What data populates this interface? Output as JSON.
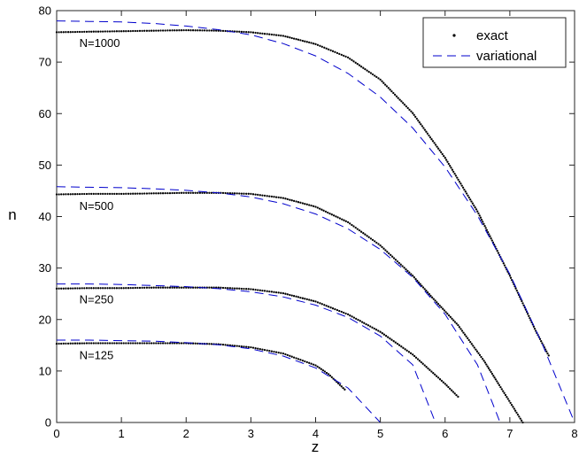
{
  "chart_data": {
    "type": "line",
    "title": "",
    "xlabel": "z",
    "ylabel": "n",
    "xlim": [
      0,
      8
    ],
    "ylim": [
      0,
      80
    ],
    "xticks": [
      0,
      1,
      2,
      3,
      4,
      5,
      6,
      7,
      8
    ],
    "yticks": [
      0,
      10,
      20,
      30,
      40,
      50,
      60,
      70,
      80
    ],
    "xtick_labels": [
      "0",
      "1",
      "2",
      "3",
      "4",
      "5",
      "6",
      "7",
      "8"
    ],
    "ytick_labels": [
      "0",
      "10",
      "20",
      "30",
      "40",
      "50",
      "60",
      "70",
      "80"
    ],
    "grid": false,
    "legend": {
      "position": "top-right",
      "entries": [
        {
          "name": "exact",
          "style": "dotted",
          "color": "#000000"
        },
        {
          "name": "variational",
          "style": "dashed",
          "color": "#0000cc"
        }
      ]
    },
    "curve_labels": [
      {
        "text": "N=1000",
        "x": 0.35,
        "y": 73.6
      },
      {
        "text": "N=500",
        "x": 0.35,
        "y": 42.0
      },
      {
        "text": "N=250",
        "x": 0.35,
        "y": 23.8
      },
      {
        "text": "N=125",
        "x": 0.35,
        "y": 13.0
      }
    ],
    "series": [
      {
        "group": "N=1000",
        "kind": "exact",
        "x": [
          0,
          0.5,
          1,
          1.5,
          2,
          2.5,
          3,
          3.5,
          4,
          4.5,
          5,
          5.5,
          6,
          6.5,
          7,
          7.4,
          7.6
        ],
        "y": [
          75.8,
          75.9,
          76.0,
          76.1,
          76.2,
          76.1,
          75.8,
          75.1,
          73.5,
          70.9,
          66.6,
          60.1,
          51.4,
          41.0,
          28.5,
          17.8,
          13.0
        ]
      },
      {
        "group": "N=1000",
        "kind": "variational",
        "x": [
          0,
          0.5,
          1,
          1.5,
          2,
          2.5,
          3,
          3.5,
          4,
          4.5,
          5,
          5.5,
          6,
          6.5,
          7,
          7.5,
          8
        ],
        "y": [
          78.0,
          77.9,
          77.8,
          77.5,
          77.0,
          76.3,
          75.3,
          73.6,
          71.2,
          67.8,
          63.2,
          57.2,
          49.6,
          40.2,
          28.8,
          15.3,
          0
        ]
      },
      {
        "group": "N=500",
        "kind": "exact",
        "x": [
          0,
          0.5,
          1,
          1.5,
          2,
          2.5,
          3,
          3.5,
          4,
          4.5,
          5,
          5.5,
          5.8,
          6.2,
          6.6,
          6.8,
          7.2
        ],
        "y": [
          44.3,
          44.4,
          44.4,
          44.5,
          44.6,
          44.6,
          44.4,
          43.6,
          41.9,
          38.9,
          34.4,
          28.5,
          24.3,
          18.9,
          12.0,
          8.0,
          0
        ]
      },
      {
        "group": "N=500",
        "kind": "variational",
        "x": [
          0,
          0.5,
          1,
          1.5,
          2,
          2.5,
          3,
          3.5,
          4,
          4.5,
          5,
          5.5,
          6,
          6.5,
          6.85
        ],
        "y": [
          45.8,
          45.7,
          45.6,
          45.4,
          45.1,
          44.6,
          43.8,
          42.5,
          40.5,
          37.6,
          33.6,
          28.2,
          21.0,
          11.2,
          0
        ]
      },
      {
        "group": "N=250",
        "kind": "exact",
        "x": [
          0,
          0.5,
          1,
          1.5,
          2,
          2.5,
          3,
          3.5,
          4,
          4.5,
          5,
          5.5,
          6,
          6.2
        ],
        "y": [
          26.0,
          26.1,
          26.1,
          26.2,
          26.2,
          26.2,
          25.9,
          25.1,
          23.5,
          21.0,
          17.6,
          13.2,
          7.5,
          5.0
        ]
      },
      {
        "group": "N=250",
        "kind": "variational",
        "x": [
          0,
          0.5,
          1,
          1.5,
          2,
          2.5,
          3,
          3.5,
          4,
          4.5,
          5,
          5.5,
          5.85
        ],
        "y": [
          26.9,
          26.9,
          26.8,
          26.6,
          26.4,
          26.0,
          25.4,
          24.4,
          22.8,
          20.4,
          16.8,
          11.2,
          0
        ]
      },
      {
        "group": "N=125",
        "kind": "exact",
        "x": [
          0,
          0.5,
          1,
          1.5,
          2,
          2.5,
          3,
          3.5,
          4,
          4.2,
          4.45
        ],
        "y": [
          15.3,
          15.4,
          15.4,
          15.4,
          15.4,
          15.2,
          14.6,
          13.4,
          11.1,
          9.4,
          6.4
        ]
      },
      {
        "group": "N=125",
        "kind": "variational",
        "x": [
          0,
          0.5,
          1,
          1.5,
          2,
          2.5,
          3,
          3.5,
          4,
          4.5,
          5
        ],
        "y": [
          16.0,
          16.0,
          15.9,
          15.8,
          15.5,
          15.1,
          14.3,
          12.9,
          10.6,
          6.7,
          0
        ]
      }
    ]
  }
}
